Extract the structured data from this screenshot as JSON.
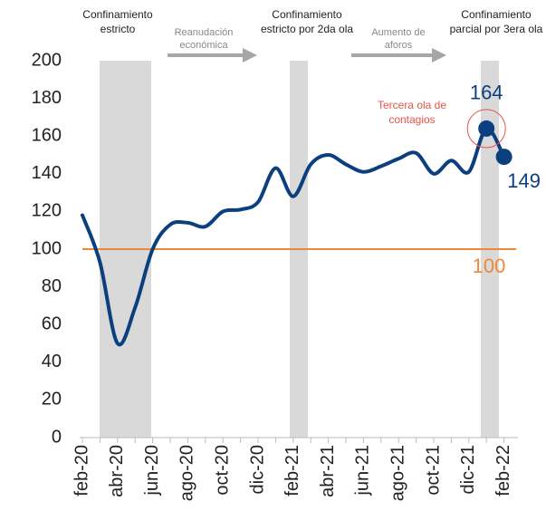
{
  "chart_data": {
    "type": "line",
    "categories": [
      "feb-20",
      null,
      "abr-20",
      null,
      "jun-20",
      null,
      "ago-20",
      null,
      "oct-20",
      null,
      "dic-20",
      null,
      "feb-21",
      null,
      "abr-21",
      null,
      "jun-21",
      null,
      "ago-21",
      null,
      "oct-21",
      null,
      "dic-21",
      null,
      "feb-22"
    ],
    "series": [
      {
        "color": "#0b3f7e",
        "values": [
          118,
          93,
          50,
          69,
          100,
          113,
          114,
          112,
          120,
          121,
          125,
          143,
          128,
          145,
          150,
          145,
          141,
          144,
          148,
          151,
          140,
          147,
          141,
          164,
          149
        ]
      }
    ],
    "ylim": [
      0,
      200
    ],
    "yticks": [
      0,
      20,
      40,
      60,
      80,
      100,
      120,
      140,
      160,
      180,
      200
    ],
    "grid": false,
    "reference_line": {
      "value": 100,
      "label": "100",
      "color": "#f0883a"
    },
    "annotations": [
      {
        "lines": [
          "Confinamiento",
          "estricto"
        ]
      },
      {
        "lines": [
          "Reanudación",
          "económica"
        ]
      },
      {
        "lines": [
          "Confinamiento",
          "estricto por 2da ola"
        ]
      },
      {
        "lines": [
          "Aumento de",
          "aforos"
        ]
      },
      {
        "lines": [
          "Confinamiento",
          "parcial por 3era ola"
        ]
      },
      {
        "lines": [
          "Tercera ola de",
          "contagios"
        ]
      }
    ]
  }
}
